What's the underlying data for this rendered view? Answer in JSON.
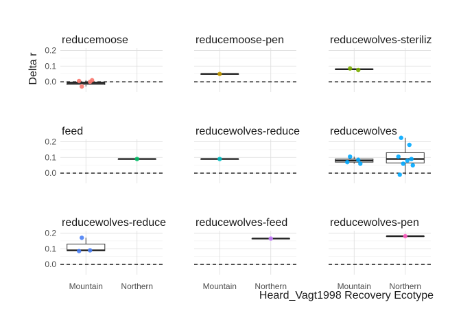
{
  "chart_data": {
    "type": "box",
    "ylabel": "Delta r",
    "xlabel": "Heard_Vagt1998 Recovery Ecotype",
    "categories": [
      "Mountain",
      "Northern"
    ],
    "yticks": [
      0.0,
      0.1,
      0.2
    ],
    "ylim": [
      -0.065,
      0.215
    ],
    "reference_line": 0.0,
    "grid": true,
    "panels": [
      {
        "title": "reducemoose",
        "color": "#f8766d",
        "groups": [
          {
            "category": "Mountain",
            "points": [
              -0.03,
              0.0,
              0.005,
              0.01
            ],
            "box": {
              "q1": -0.018,
              "median": -0.008,
              "q3": -0.002,
              "lower": -0.03,
              "upper": 0.01
            }
          }
        ]
      },
      {
        "title": "reducemoose-pen",
        "color": "#c49a00",
        "groups": [
          {
            "category": "Mountain",
            "points": [
              0.05
            ],
            "box": {
              "q1": 0.05,
              "median": 0.05,
              "q3": 0.05,
              "lower": 0.05,
              "upper": 0.05
            }
          }
        ]
      },
      {
        "title": "reducewolves-steriliz",
        "color": "#7cae00",
        "groups": [
          {
            "category": "Mountain",
            "points": [
              0.085,
              0.075
            ],
            "box": {
              "q1": 0.078,
              "median": 0.08,
              "q3": 0.082,
              "lower": 0.075,
              "upper": 0.085
            }
          }
        ]
      },
      {
        "title": "feed",
        "color": "#00be67",
        "groups": [
          {
            "category": "Northern",
            "points": [
              0.09
            ],
            "box": {
              "q1": 0.09,
              "median": 0.09,
              "q3": 0.09,
              "lower": 0.09,
              "upper": 0.09
            }
          }
        ]
      },
      {
        "title": "reducewolves-reduce",
        "color": "#00bfc4",
        "groups": [
          {
            "category": "Mountain",
            "points": [
              0.09
            ],
            "box": {
              "q1": 0.09,
              "median": 0.09,
              "q3": 0.09,
              "lower": 0.09,
              "upper": 0.09
            }
          }
        ]
      },
      {
        "title": "reducewolves",
        "color": "#00a9ff",
        "groups": [
          {
            "category": "Mountain",
            "points": [
              0.105,
              0.085,
              0.07,
              0.06
            ],
            "box": {
              "q1": 0.07,
              "median": 0.08,
              "q3": 0.09,
              "lower": 0.06,
              "upper": 0.105
            }
          },
          {
            "category": "Northern",
            "points": [
              0.225,
              0.18,
              0.105,
              0.09,
              0.08,
              0.06,
              0.05,
              -0.01
            ],
            "box": {
              "q1": 0.065,
              "median": 0.09,
              "q3": 0.13,
              "lower": -0.01,
              "upper": 0.225
            }
          }
        ]
      },
      {
        "title": "reducewolves-reduce",
        "color": "#4a7ff5",
        "groups": [
          {
            "category": "Mountain",
            "points": [
              0.17,
              0.09,
              0.085
            ],
            "box": {
              "q1": 0.087,
              "median": 0.09,
              "q3": 0.13,
              "lower": 0.085,
              "upper": 0.17
            }
          }
        ]
      },
      {
        "title": "reducewolves-feed",
        "color": "#c77cff",
        "groups": [
          {
            "category": "Northern",
            "points": [
              0.165
            ],
            "box": {
              "q1": 0.165,
              "median": 0.165,
              "q3": 0.165,
              "lower": 0.165,
              "upper": 0.165
            }
          }
        ]
      },
      {
        "title": "reducewolves-pen",
        "color": "#ff61c3",
        "groups": [
          {
            "category": "Northern",
            "points": [
              0.18
            ],
            "box": {
              "q1": 0.18,
              "median": 0.18,
              "q3": 0.18,
              "lower": 0.18,
              "upper": 0.18
            }
          }
        ]
      }
    ]
  }
}
